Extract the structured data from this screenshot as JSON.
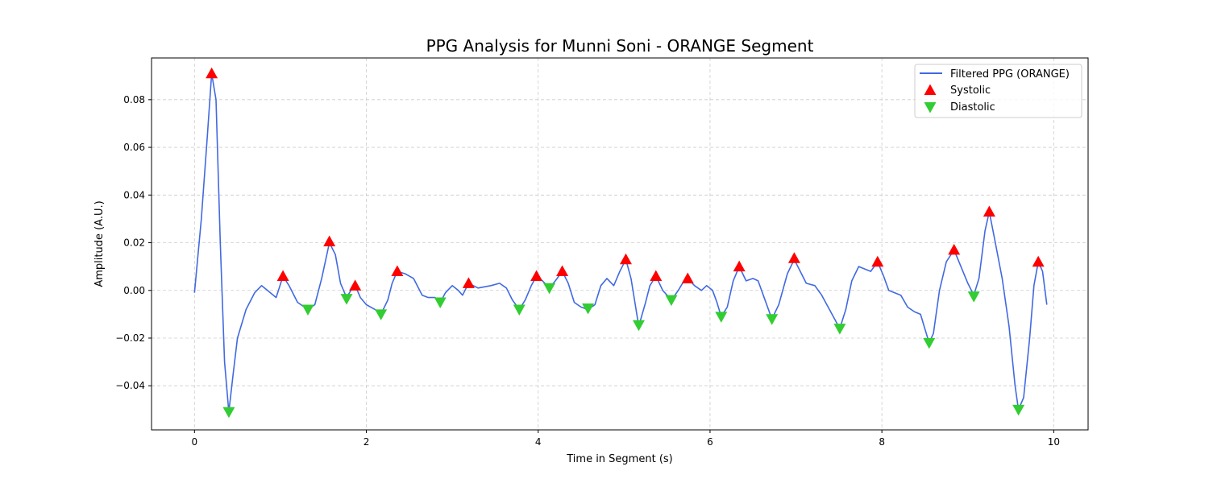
{
  "chart_data": {
    "type": "line",
    "title": "PPG Analysis for Munni Soni - ORANGE Segment",
    "xlabel": "Time in Segment (s)",
    "ylabel": "Amplitude (A.U.)",
    "xlim": [
      -0.5,
      10.4
    ],
    "ylim": [
      -0.0585,
      0.0975
    ],
    "xticks": [
      0,
      2,
      4,
      6,
      8,
      10
    ],
    "xtick_labels": [
      "0",
      "2",
      "4",
      "6",
      "8",
      "10"
    ],
    "yticks": [
      0.08,
      0.06,
      0.04,
      0.02,
      0.0,
      -0.02,
      -0.04
    ],
    "ytick_labels": [
      "0.08",
      "0.06",
      "0.04",
      "0.02",
      "0.00",
      "−0.02",
      "−0.04"
    ],
    "grid": true,
    "legend_position": "top-right",
    "colors": {
      "line": "#4169e1",
      "systolic": "#ff0000",
      "diastolic": "#32cd32",
      "grid": "#cccccc"
    },
    "series": [
      {
        "name": "Filtered PPG (ORANGE)",
        "kind": "line",
        "points": [
          [
            0.0,
            -0.001
          ],
          [
            0.08,
            0.03
          ],
          [
            0.15,
            0.065
          ],
          [
            0.2,
            0.091
          ],
          [
            0.25,
            0.08
          ],
          [
            0.3,
            0.02
          ],
          [
            0.35,
            -0.03
          ],
          [
            0.4,
            -0.051
          ],
          [
            0.45,
            -0.035
          ],
          [
            0.5,
            -0.02
          ],
          [
            0.6,
            -0.008
          ],
          [
            0.7,
            -0.001
          ],
          [
            0.78,
            0.002
          ],
          [
            0.85,
            0.0
          ],
          [
            0.95,
            -0.003
          ],
          [
            1.03,
            0.006
          ],
          [
            1.1,
            0.002
          ],
          [
            1.2,
            -0.005
          ],
          [
            1.32,
            -0.008
          ],
          [
            1.4,
            -0.006
          ],
          [
            1.48,
            0.005
          ],
          [
            1.57,
            0.02
          ],
          [
            1.64,
            0.015
          ],
          [
            1.7,
            0.003
          ],
          [
            1.77,
            -0.003
          ],
          [
            1.82,
            0.0
          ],
          [
            1.87,
            0.002
          ],
          [
            1.93,
            -0.003
          ],
          [
            2.0,
            -0.006
          ],
          [
            2.1,
            -0.008
          ],
          [
            2.17,
            -0.01
          ],
          [
            2.25,
            -0.004
          ],
          [
            2.3,
            0.003
          ],
          [
            2.36,
            0.008
          ],
          [
            2.45,
            0.007
          ],
          [
            2.55,
            0.005
          ],
          [
            2.65,
            -0.002
          ],
          [
            2.72,
            -0.003
          ],
          [
            2.8,
            -0.003
          ],
          [
            2.86,
            -0.005
          ],
          [
            2.92,
            -0.001
          ],
          [
            3.0,
            0.002
          ],
          [
            3.07,
            0.0
          ],
          [
            3.12,
            -0.002
          ],
          [
            3.19,
            0.003
          ],
          [
            3.3,
            0.001
          ],
          [
            3.45,
            0.002
          ],
          [
            3.55,
            0.003
          ],
          [
            3.63,
            0.001
          ],
          [
            3.7,
            -0.004
          ],
          [
            3.78,
            -0.008
          ],
          [
            3.85,
            -0.004
          ],
          [
            3.92,
            0.002
          ],
          [
            3.98,
            0.006
          ],
          [
            4.05,
            0.004
          ],
          [
            4.13,
            0.001
          ],
          [
            4.2,
            0.004
          ],
          [
            4.28,
            0.008
          ],
          [
            4.35,
            0.003
          ],
          [
            4.42,
            -0.005
          ],
          [
            4.5,
            -0.007
          ],
          [
            4.58,
            -0.008
          ],
          [
            4.66,
            -0.006
          ],
          [
            4.73,
            0.002
          ],
          [
            4.8,
            0.005
          ],
          [
            4.88,
            0.002
          ],
          [
            4.95,
            0.008
          ],
          [
            5.02,
            0.013
          ],
          [
            5.08,
            0.005
          ],
          [
            5.17,
            -0.015
          ],
          [
            5.25,
            -0.005
          ],
          [
            5.3,
            0.002
          ],
          [
            5.37,
            0.006
          ],
          [
            5.45,
            0.0
          ],
          [
            5.55,
            -0.004
          ],
          [
            5.63,
            0.0
          ],
          [
            5.68,
            0.003
          ],
          [
            5.74,
            0.005
          ],
          [
            5.82,
            0.002
          ],
          [
            5.9,
            0.0
          ],
          [
            5.96,
            0.002
          ],
          [
            6.03,
            0.0
          ],
          [
            6.08,
            -0.005
          ],
          [
            6.13,
            -0.011
          ],
          [
            6.2,
            -0.007
          ],
          [
            6.27,
            0.004
          ],
          [
            6.34,
            0.01
          ],
          [
            6.42,
            0.004
          ],
          [
            6.5,
            0.005
          ],
          [
            6.56,
            0.004
          ],
          [
            6.62,
            -0.002
          ],
          [
            6.72,
            -0.012
          ],
          [
            6.8,
            -0.006
          ],
          [
            6.9,
            0.007
          ],
          [
            6.98,
            0.013
          ],
          [
            7.05,
            0.008
          ],
          [
            7.12,
            0.003
          ],
          [
            7.22,
            0.002
          ],
          [
            7.3,
            -0.002
          ],
          [
            7.42,
            -0.01
          ],
          [
            7.51,
            -0.016
          ],
          [
            7.58,
            -0.008
          ],
          [
            7.65,
            0.004
          ],
          [
            7.73,
            0.01
          ],
          [
            7.8,
            0.009
          ],
          [
            7.87,
            0.008
          ],
          [
            7.95,
            0.012
          ],
          [
            8.02,
            0.006
          ],
          [
            8.08,
            0.0
          ],
          [
            8.15,
            -0.001
          ],
          [
            8.22,
            -0.002
          ],
          [
            8.3,
            -0.007
          ],
          [
            8.38,
            -0.009
          ],
          [
            8.45,
            -0.01
          ],
          [
            8.5,
            -0.016
          ],
          [
            8.55,
            -0.022
          ],
          [
            8.6,
            -0.018
          ],
          [
            8.67,
            0.0
          ],
          [
            8.75,
            0.012
          ],
          [
            8.84,
            0.017
          ],
          [
            8.92,
            0.01
          ],
          [
            9.0,
            0.003
          ],
          [
            9.07,
            -0.002
          ],
          [
            9.13,
            0.005
          ],
          [
            9.2,
            0.025
          ],
          [
            9.25,
            0.033
          ],
          [
            9.32,
            0.02
          ],
          [
            9.4,
            0.005
          ],
          [
            9.48,
            -0.015
          ],
          [
            9.55,
            -0.04
          ],
          [
            9.59,
            -0.05
          ],
          [
            9.65,
            -0.045
          ],
          [
            9.72,
            -0.02
          ],
          [
            9.77,
            0.002
          ],
          [
            9.82,
            0.012
          ],
          [
            9.87,
            0.008
          ],
          [
            9.92,
            -0.006
          ]
        ]
      },
      {
        "name": "Systolic",
        "kind": "marker",
        "marker": "triangle-up",
        "points": [
          [
            0.2,
            0.091
          ],
          [
            1.03,
            0.006
          ],
          [
            1.57,
            0.0205
          ],
          [
            1.87,
            0.002
          ],
          [
            2.36,
            0.008
          ],
          [
            3.19,
            0.003
          ],
          [
            3.98,
            0.006
          ],
          [
            4.28,
            0.008
          ],
          [
            5.02,
            0.013
          ],
          [
            5.37,
            0.006
          ],
          [
            5.74,
            0.005
          ],
          [
            6.34,
            0.01
          ],
          [
            6.98,
            0.0135
          ],
          [
            7.95,
            0.012
          ],
          [
            8.84,
            0.017
          ],
          [
            9.25,
            0.033
          ],
          [
            9.82,
            0.012
          ]
        ]
      },
      {
        "name": "Diastolic",
        "kind": "marker",
        "marker": "triangle-down",
        "points": [
          [
            0.4,
            -0.051
          ],
          [
            1.32,
            -0.008
          ],
          [
            1.77,
            -0.0035
          ],
          [
            2.17,
            -0.01
          ],
          [
            2.86,
            -0.005
          ],
          [
            3.78,
            -0.008
          ],
          [
            4.13,
            0.001
          ],
          [
            4.58,
            -0.0075
          ],
          [
            5.17,
            -0.0145
          ],
          [
            5.55,
            -0.004
          ],
          [
            6.13,
            -0.011
          ],
          [
            6.72,
            -0.012
          ],
          [
            7.51,
            -0.016
          ],
          [
            8.55,
            -0.022
          ],
          [
            9.07,
            -0.0025
          ],
          [
            9.59,
            -0.05
          ]
        ]
      }
    ]
  }
}
